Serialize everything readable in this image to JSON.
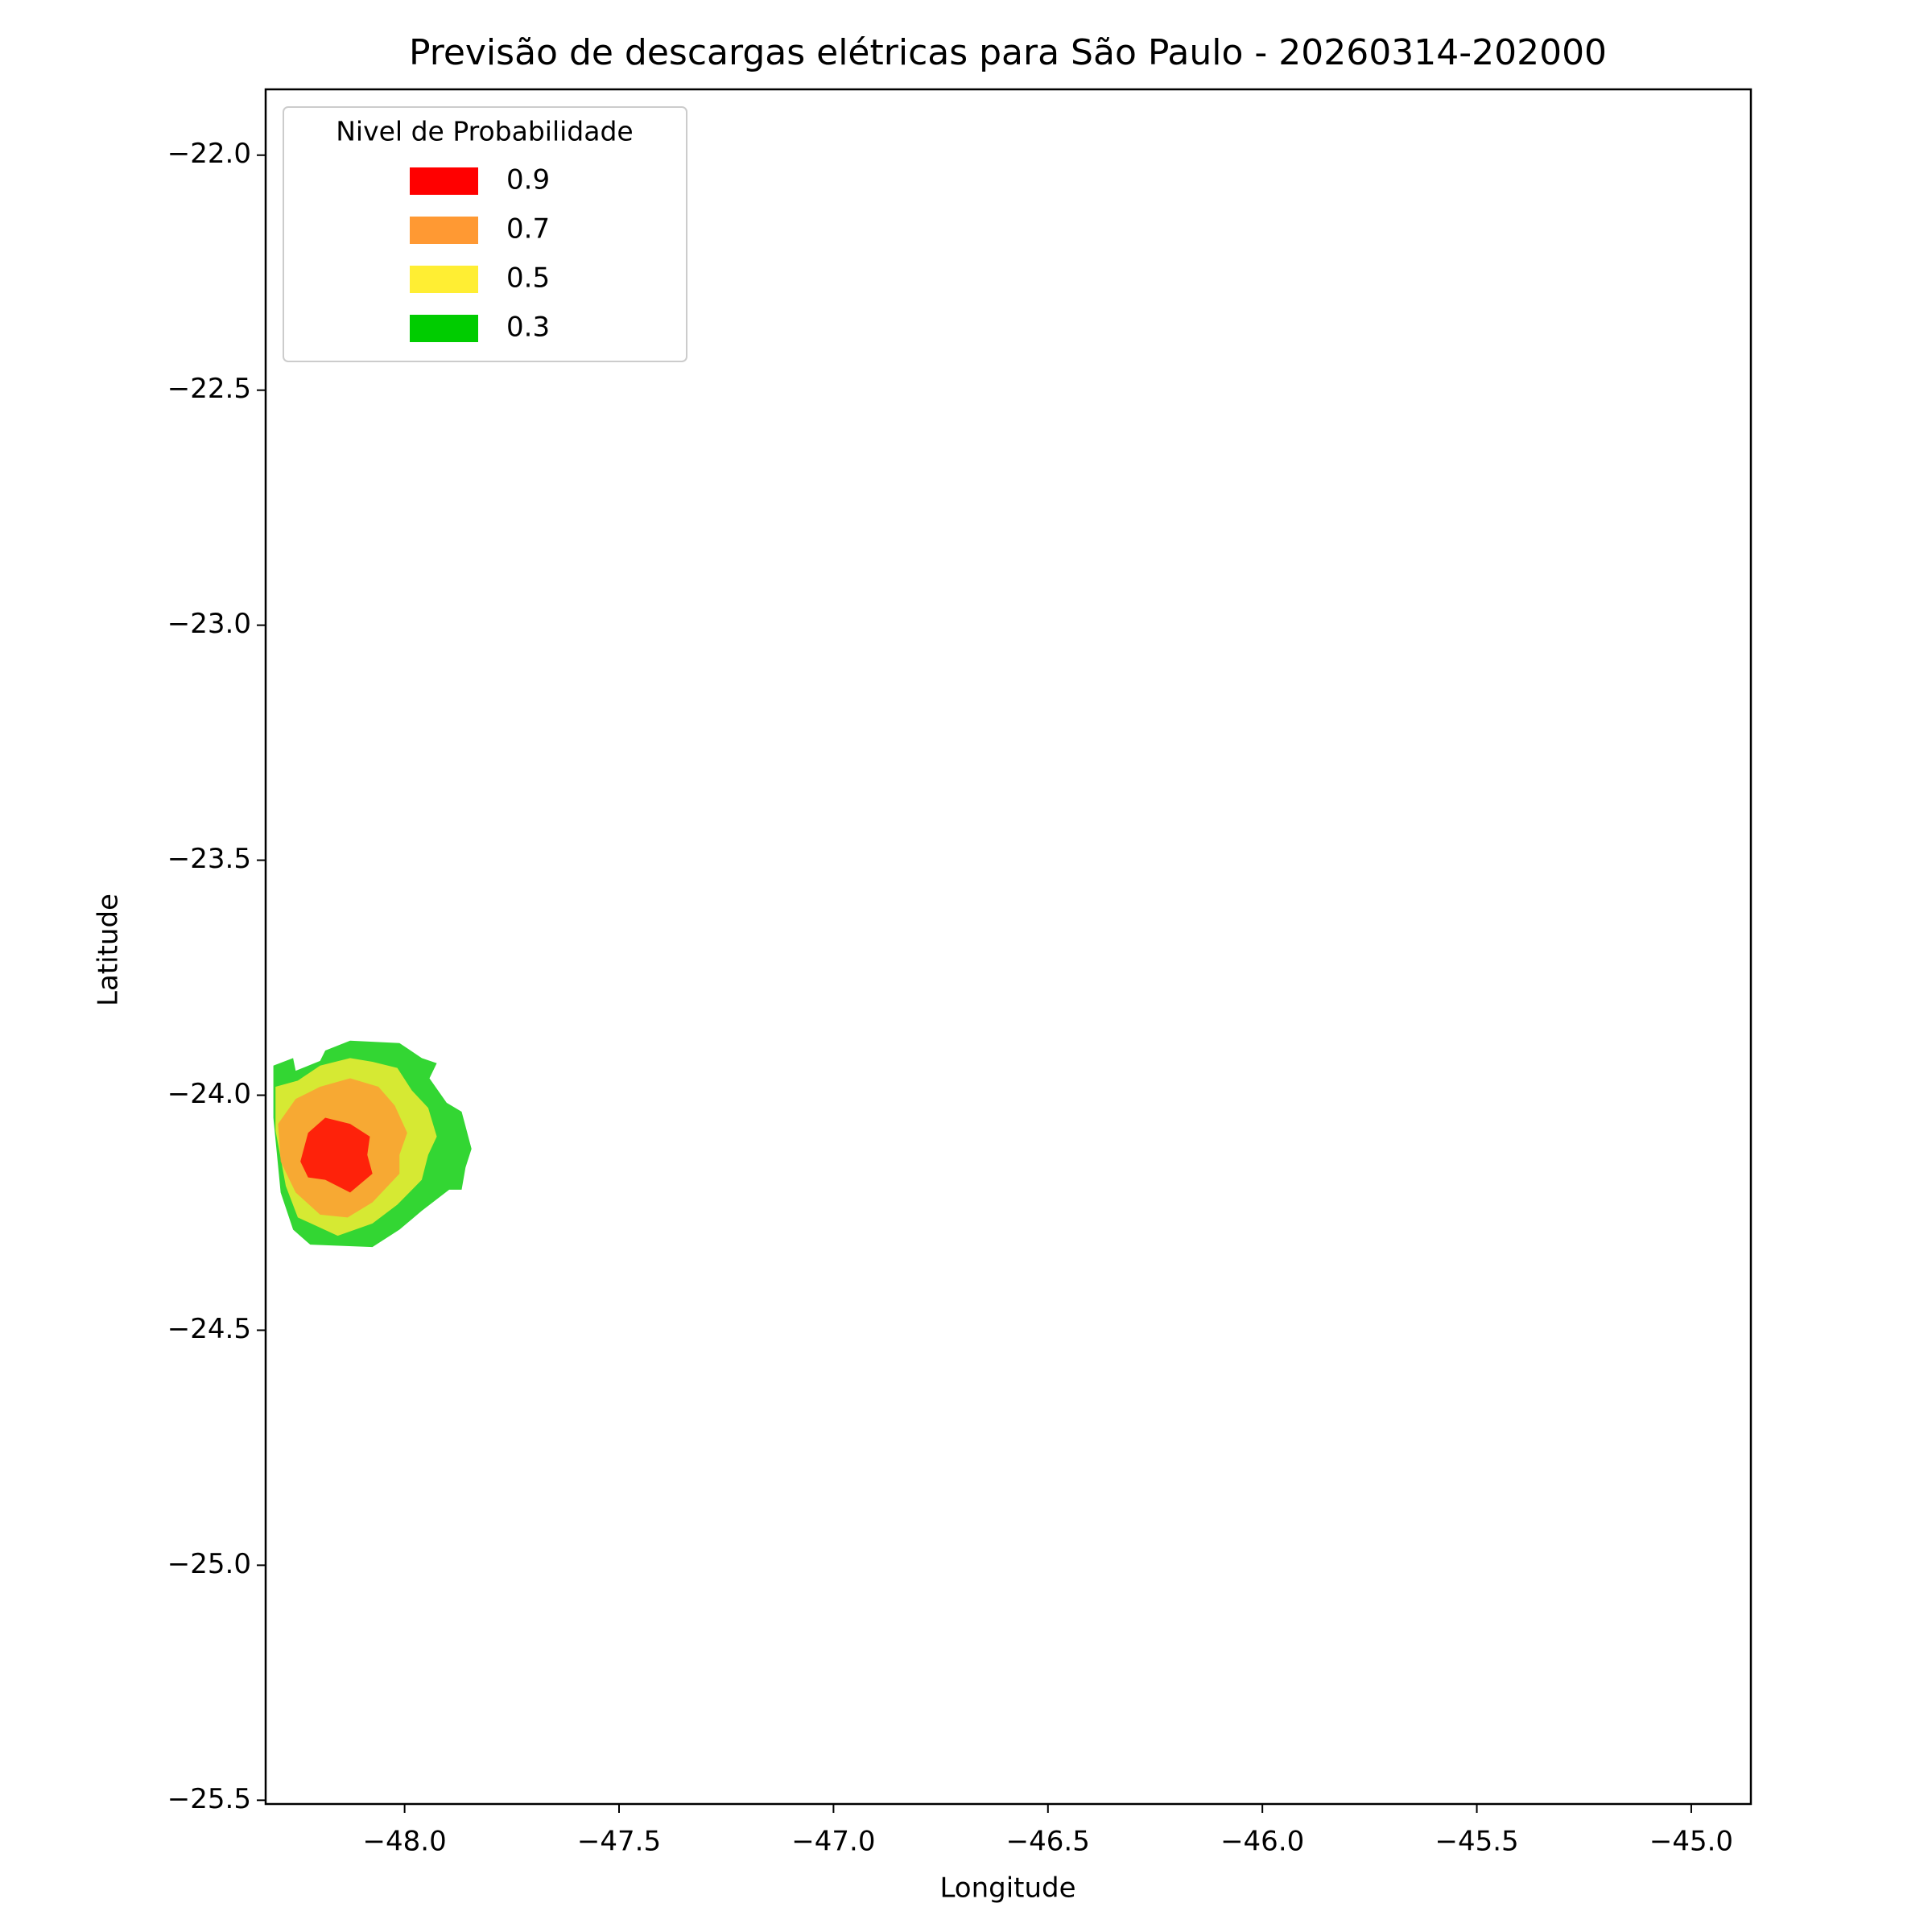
{
  "chart_data": {
    "type": "contour",
    "title": "Previsão de descargas elétricas para São Paulo - 20260314-202000",
    "x_label": "Longitude",
    "y_label": "Latitude",
    "legend_title": "Nivel de Probabilidade",
    "legend_position": "upper left",
    "fill_opacity": 0.8,
    "xlim": [
      -48.324,
      -44.861
    ],
    "ylim": [
      -25.508,
      -21.86
    ],
    "xticks": [
      {
        "value": -48,
        "label": "−48.0"
      },
      {
        "value": -47.5,
        "label": "−47.5"
      },
      {
        "value": -47,
        "label": "−47.0"
      },
      {
        "value": -46.5,
        "label": "−46.5"
      },
      {
        "value": -46,
        "label": "−46.0"
      },
      {
        "value": -45.5,
        "label": "−45.5"
      },
      {
        "value": -45,
        "label": "−45.0"
      }
    ],
    "yticks": [
      {
        "value": -22,
        "label": "−22.0"
      },
      {
        "value": -22.5,
        "label": "−22.5"
      },
      {
        "value": -23,
        "label": "−23.0"
      },
      {
        "value": -23.5,
        "label": "−23.5"
      },
      {
        "value": -24,
        "label": "−24.0"
      },
      {
        "value": -24.5,
        "label": "−24.5"
      },
      {
        "value": -25,
        "label": "−25.0"
      },
      {
        "value": -25.5,
        "label": "−25.5"
      }
    ],
    "series": [
      {
        "name": "0.9",
        "color": "#ff0000",
        "x": [
          -48.243,
          -48.225,
          -48.185,
          -48.127,
          -48.081,
          -48.087,
          -48.075,
          -48.127,
          -48.185,
          -48.225
        ],
        "y": [
          -24.141,
          -24.08,
          -24.048,
          -24.061,
          -24.088,
          -24.127,
          -24.167,
          -24.207,
          -24.18,
          -24.175
        ]
      },
      {
        "name": "0.7",
        "color": "#ff9933",
        "x": [
          -48.295,
          -48.254,
          -48.197,
          -48.127,
          -48.061,
          -48.023,
          -47.994,
          -48.012,
          -48.012,
          -48.075,
          -48.133,
          -48.197,
          -48.254,
          -48.289
        ],
        "y": [
          -24.061,
          -24.008,
          -23.982,
          -23.964,
          -23.982,
          -24.022,
          -24.08,
          -24.127,
          -24.167,
          -24.228,
          -24.26,
          -24.254,
          -24.207,
          -24.141
        ]
      },
      {
        "name": "0.5",
        "color": "#ffee33",
        "x": [
          -48.301,
          -48.249,
          -48.197,
          -48.127,
          -48.075,
          -48.017,
          -47.983,
          -47.945,
          -47.925,
          -47.945,
          -47.96,
          -48.017,
          -48.075,
          -48.156,
          -48.249,
          -48.277,
          -48.301
        ],
        "y": [
          -23.982,
          -23.969,
          -23.937,
          -23.921,
          -23.929,
          -23.942,
          -23.99,
          -24.027,
          -24.088,
          -24.127,
          -24.18,
          -24.233,
          -24.273,
          -24.299,
          -24.26,
          -24.193,
          -24.075
        ]
      },
      {
        "name": "0.3",
        "color": "#00cc00",
        "x": [
          -48.306,
          -48.26,
          -48.254,
          -48.197,
          -48.185,
          -48.127,
          -48.012,
          -47.96,
          -47.925,
          -47.942,
          -47.902,
          -47.867,
          -47.844,
          -47.858,
          -47.867,
          -47.896,
          -47.96,
          -48.012,
          -48.075,
          -48.22,
          -48.26,
          -48.289,
          -48.306
        ],
        "y": [
          -23.937,
          -23.921,
          -23.948,
          -23.927,
          -23.905,
          -23.884,
          -23.889,
          -23.921,
          -23.932,
          -23.964,
          -24.016,
          -24.035,
          -24.114,
          -24.154,
          -24.201,
          -24.201,
          -24.246,
          -24.286,
          -24.323,
          -24.318,
          -24.286,
          -24.207,
          -24.048
        ]
      }
    ]
  }
}
